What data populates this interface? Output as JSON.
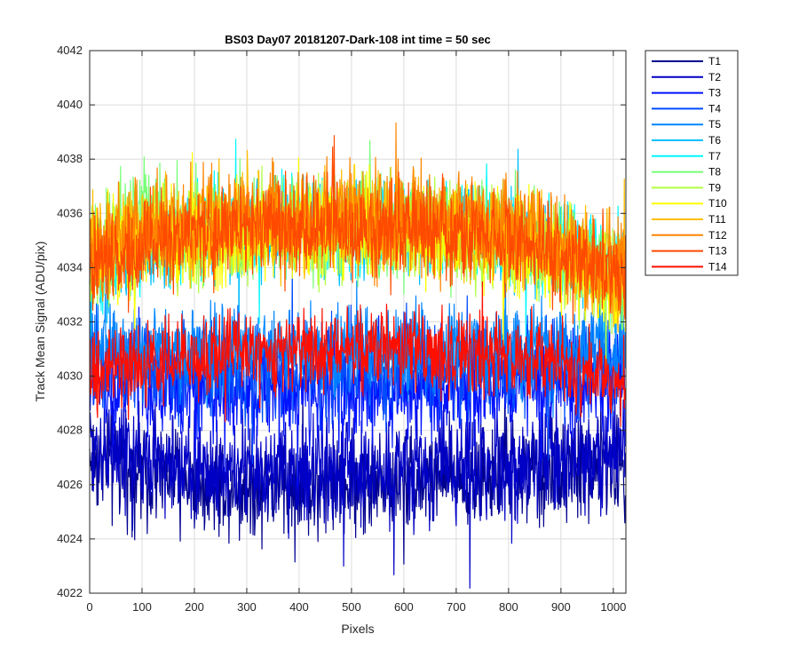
{
  "chart_data": {
    "type": "line",
    "title": "BS03 Day07 20181207-Dark-108 int time = 50 sec",
    "xlabel": "Pixels",
    "ylabel": "Track Mean Signal (ADU/pix)",
    "xlim": [
      0,
      1024
    ],
    "ylim": [
      4022,
      4042
    ],
    "xticks": [
      "0",
      "100",
      "200",
      "300",
      "400",
      "500",
      "600",
      "700",
      "800",
      "900",
      "1000"
    ],
    "yticks": [
      "4022",
      "4024",
      "4026",
      "4028",
      "4030",
      "4032",
      "4034",
      "4036",
      "4038",
      "4040",
      "4042"
    ],
    "grid": true,
    "legend_position": "outside-top-right",
    "noise_note": "each series is a noisy dark-frame trace over 1024 pixels; values below describe mean level and approximate peak-to-peak spread",
    "series": [
      {
        "name": "T1",
        "color": "#00008f",
        "mean": 4026.3,
        "spread": 2.8,
        "points": [
          [
            0,
            4027.0
          ],
          [
            100,
            4026.5
          ],
          [
            200,
            4026.2
          ],
          [
            300,
            4026.0
          ],
          [
            400,
            4026.0
          ],
          [
            500,
            4026.0
          ],
          [
            600,
            4026.2
          ],
          [
            700,
            4026.3
          ],
          [
            800,
            4026.3
          ],
          [
            900,
            4026.5
          ],
          [
            1024,
            4026.8
          ]
        ]
      },
      {
        "name": "T2",
        "color": "#0000c6",
        "mean": 4026.7,
        "spread": 2.8,
        "points": [
          [
            0,
            4027.5
          ],
          [
            100,
            4027.0
          ],
          [
            200,
            4026.6
          ],
          [
            300,
            4026.4
          ],
          [
            400,
            4026.4
          ],
          [
            500,
            4026.5
          ],
          [
            600,
            4026.6
          ],
          [
            700,
            4026.7
          ],
          [
            800,
            4026.7
          ],
          [
            900,
            4026.9
          ],
          [
            1024,
            4027.2
          ]
        ]
      },
      {
        "name": "T3",
        "color": "#0013ff",
        "mean": 4029.5,
        "spread": 2.6,
        "points": [
          [
            0,
            4029.8
          ],
          [
            100,
            4029.6
          ],
          [
            200,
            4029.5
          ],
          [
            300,
            4029.4
          ],
          [
            400,
            4029.4
          ],
          [
            500,
            4029.4
          ],
          [
            600,
            4029.5
          ],
          [
            700,
            4029.5
          ],
          [
            800,
            4029.5
          ],
          [
            900,
            4029.6
          ],
          [
            1024,
            4029.8
          ]
        ]
      },
      {
        "name": "T4",
        "color": "#004cff",
        "mean": 4030.3,
        "spread": 2.6,
        "points": [
          [
            0,
            4030.5
          ],
          [
            100,
            4030.4
          ],
          [
            200,
            4030.3
          ],
          [
            300,
            4030.2
          ],
          [
            400,
            4030.2
          ],
          [
            500,
            4030.2
          ],
          [
            600,
            4030.3
          ],
          [
            700,
            4030.3
          ],
          [
            800,
            4030.3
          ],
          [
            900,
            4030.4
          ],
          [
            1024,
            4030.5
          ]
        ]
      },
      {
        "name": "T5",
        "color": "#0085ff",
        "mean": 4031.0,
        "spread": 2.4,
        "points": [
          [
            0,
            4031.0
          ],
          [
            100,
            4031.0
          ],
          [
            200,
            4031.0
          ],
          [
            300,
            4031.0
          ],
          [
            400,
            4031.0
          ],
          [
            500,
            4031.0
          ],
          [
            600,
            4031.0
          ],
          [
            700,
            4031.0
          ],
          [
            800,
            4031.0
          ],
          [
            900,
            4031.0
          ],
          [
            1024,
            4031.0
          ]
        ]
      },
      {
        "name": "T6",
        "color": "#00c0ff",
        "mean": 4034.8,
        "spread": 2.4,
        "points": [
          [
            0,
            4033.5
          ],
          [
            100,
            4034.5
          ],
          [
            200,
            4035.0
          ],
          [
            300,
            4035.3
          ],
          [
            400,
            4035.5
          ],
          [
            500,
            4035.5
          ],
          [
            600,
            4035.5
          ],
          [
            700,
            4035.3
          ],
          [
            800,
            4035.0
          ],
          [
            900,
            4034.5
          ],
          [
            1024,
            4033.5
          ]
        ]
      },
      {
        "name": "T7",
        "color": "#00f8ff",
        "mean": 4035.0,
        "spread": 2.4,
        "points": [
          [
            0,
            4033.8
          ],
          [
            100,
            4034.8
          ],
          [
            200,
            4035.2
          ],
          [
            300,
            4035.5
          ],
          [
            400,
            4035.6
          ],
          [
            500,
            4035.6
          ],
          [
            600,
            4035.6
          ],
          [
            700,
            4035.5
          ],
          [
            800,
            4035.2
          ],
          [
            900,
            4034.7
          ],
          [
            1024,
            4033.8
          ]
        ]
      },
      {
        "name": "T8",
        "color": "#77ff77",
        "mean": 4034.9,
        "spread": 2.6,
        "points": [
          [
            0,
            4034.2
          ],
          [
            100,
            4036.5
          ],
          [
            200,
            4035.3
          ],
          [
            300,
            4035.5
          ],
          [
            400,
            4035.5
          ],
          [
            500,
            4035.5
          ],
          [
            600,
            4035.5
          ],
          [
            700,
            4035.4
          ],
          [
            800,
            4035.1
          ],
          [
            900,
            4034.6
          ],
          [
            1024,
            4033.6
          ]
        ]
      },
      {
        "name": "T9",
        "color": "#b2ff40",
        "mean": 4034.8,
        "spread": 2.6,
        "points": [
          [
            0,
            4033.8
          ],
          [
            100,
            4035.0
          ],
          [
            200,
            4035.2
          ],
          [
            300,
            4035.4
          ],
          [
            400,
            4035.4
          ],
          [
            500,
            4035.4
          ],
          [
            600,
            4035.4
          ],
          [
            700,
            4035.3
          ],
          [
            800,
            4035.0
          ],
          [
            900,
            4034.4
          ],
          [
            1024,
            4033.4
          ]
        ]
      },
      {
        "name": "T10",
        "color": "#ffff00",
        "mean": 4034.7,
        "spread": 2.6,
        "points": [
          [
            0,
            4034.5
          ],
          [
            100,
            4035.0
          ],
          [
            200,
            4035.1
          ],
          [
            300,
            4035.3
          ],
          [
            400,
            4035.3
          ],
          [
            500,
            4035.3
          ],
          [
            600,
            4035.3
          ],
          [
            700,
            4035.2
          ],
          [
            800,
            4034.9
          ],
          [
            900,
            4034.3
          ],
          [
            1024,
            4033.3
          ]
        ]
      },
      {
        "name": "T11",
        "color": "#ffbe00",
        "mean": 4035.0,
        "spread": 2.6,
        "points": [
          [
            0,
            4034.6
          ],
          [
            100,
            4035.2
          ],
          [
            200,
            4035.4
          ],
          [
            300,
            4035.6
          ],
          [
            400,
            4035.6
          ],
          [
            500,
            4035.6
          ],
          [
            600,
            4035.6
          ],
          [
            700,
            4035.5
          ],
          [
            800,
            4035.2
          ],
          [
            900,
            4034.6
          ],
          [
            1024,
            4033.6
          ]
        ]
      },
      {
        "name": "T12",
        "color": "#ff8400",
        "mean": 4035.2,
        "spread": 2.8,
        "points": [
          [
            0,
            4034.5
          ],
          [
            100,
            4035.3
          ],
          [
            200,
            4035.6
          ],
          [
            300,
            4035.8
          ],
          [
            400,
            4035.8
          ],
          [
            500,
            4035.8
          ],
          [
            600,
            4035.8
          ],
          [
            700,
            4035.7
          ],
          [
            800,
            4035.4
          ],
          [
            900,
            4034.8
          ],
          [
            1024,
            4033.8
          ]
        ]
      },
      {
        "name": "T13",
        "color": "#ff4a00",
        "mean": 4034.9,
        "spread": 2.6,
        "points": [
          [
            0,
            4034.0
          ],
          [
            100,
            4034.8
          ],
          [
            200,
            4035.2
          ],
          [
            300,
            4035.4
          ],
          [
            400,
            4035.5
          ],
          [
            500,
            4035.5
          ],
          [
            600,
            4035.5
          ],
          [
            700,
            4035.3
          ],
          [
            800,
            4035.0
          ],
          [
            900,
            4034.5
          ],
          [
            1024,
            4033.6
          ]
        ]
      },
      {
        "name": "T14",
        "color": "#ff0f00",
        "mean": 4030.6,
        "spread": 2.2,
        "points": [
          [
            0,
            4030.0
          ],
          [
            100,
            4030.4
          ],
          [
            200,
            4030.7
          ],
          [
            300,
            4030.9
          ],
          [
            400,
            4031.0
          ],
          [
            500,
            4031.0
          ],
          [
            600,
            4031.0
          ],
          [
            700,
            4030.9
          ],
          [
            800,
            4030.7
          ],
          [
            900,
            4030.4
          ],
          [
            1024,
            4029.8
          ]
        ]
      }
    ]
  }
}
